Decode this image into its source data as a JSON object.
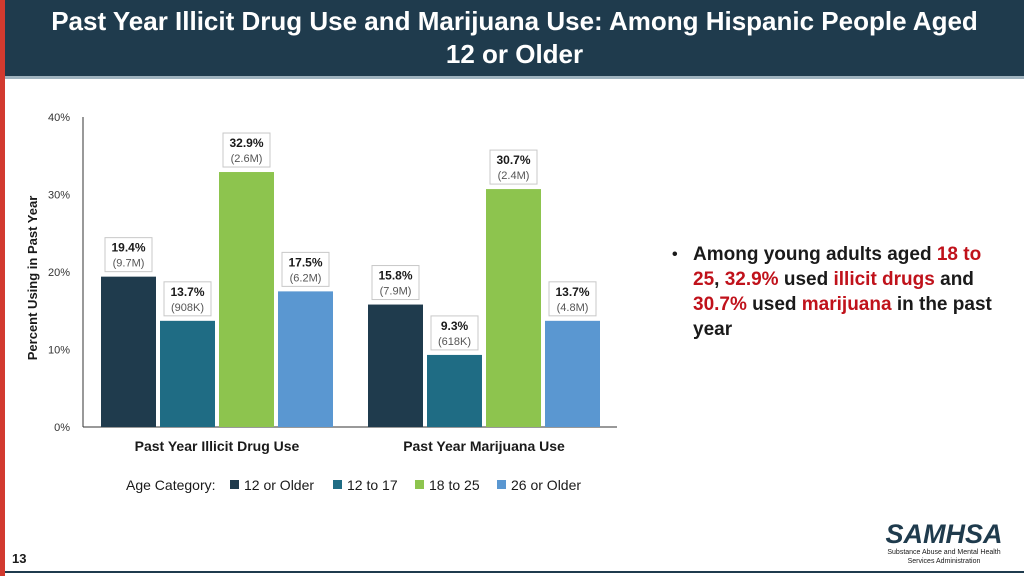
{
  "header": {
    "title": "Past Year Illicit Drug Use and Marijuana Use: Among Hispanic People Aged 12 or Older"
  },
  "chart_data": {
    "type": "bar",
    "ylabel": "Percent Using in Past Year",
    "ylim": [
      0,
      40
    ],
    "yticks": [
      "0%",
      "10%",
      "20%",
      "30%",
      "40%"
    ],
    "categories": [
      "Past Year Illicit Drug Use",
      "Past Year Marijuana Use"
    ],
    "legend_title": "Age Category:",
    "legend_position": "bottom",
    "series": [
      {
        "name": "12 or Older",
        "color": "#1f3b4d",
        "values": [
          19.4,
          15.8
        ],
        "labels": [
          "19.4%",
          "15.8%"
        ],
        "counts": [
          "(9.7M)",
          "(7.9M)"
        ]
      },
      {
        "name": "12 to 17",
        "color": "#1f6c84",
        "values": [
          13.7,
          9.3
        ],
        "labels": [
          "13.7%",
          "9.3%"
        ],
        "counts": [
          "(908K)",
          "(618K)"
        ]
      },
      {
        "name": "18 to 25",
        "color": "#8dc44e",
        "values": [
          32.9,
          30.7
        ],
        "labels": [
          "32.9%",
          "30.7%"
        ],
        "counts": [
          "(2.6M)",
          "(2.4M)"
        ]
      },
      {
        "name": "26 or Older",
        "color": "#5a97d1",
        "values": [
          17.5,
          13.7
        ],
        "labels": [
          "17.5%",
          "13.7%"
        ],
        "counts": [
          "(6.2M)",
          "(4.8M)"
        ]
      }
    ]
  },
  "bullet": {
    "part1": "Among young adults aged ",
    "part2": "18 to 25",
    "part3": ", ",
    "part4": "32.9%",
    "part5": " used ",
    "part6": "illicit drugs",
    "part7": " and ",
    "part8": "30.7%",
    "part9": " used ",
    "part10": "marijuana",
    "part11": " in the past year"
  },
  "logo": {
    "name": "SAMHSA",
    "subtitle": "Substance Abuse and Mental Health Services Administration"
  },
  "page_number": "13"
}
